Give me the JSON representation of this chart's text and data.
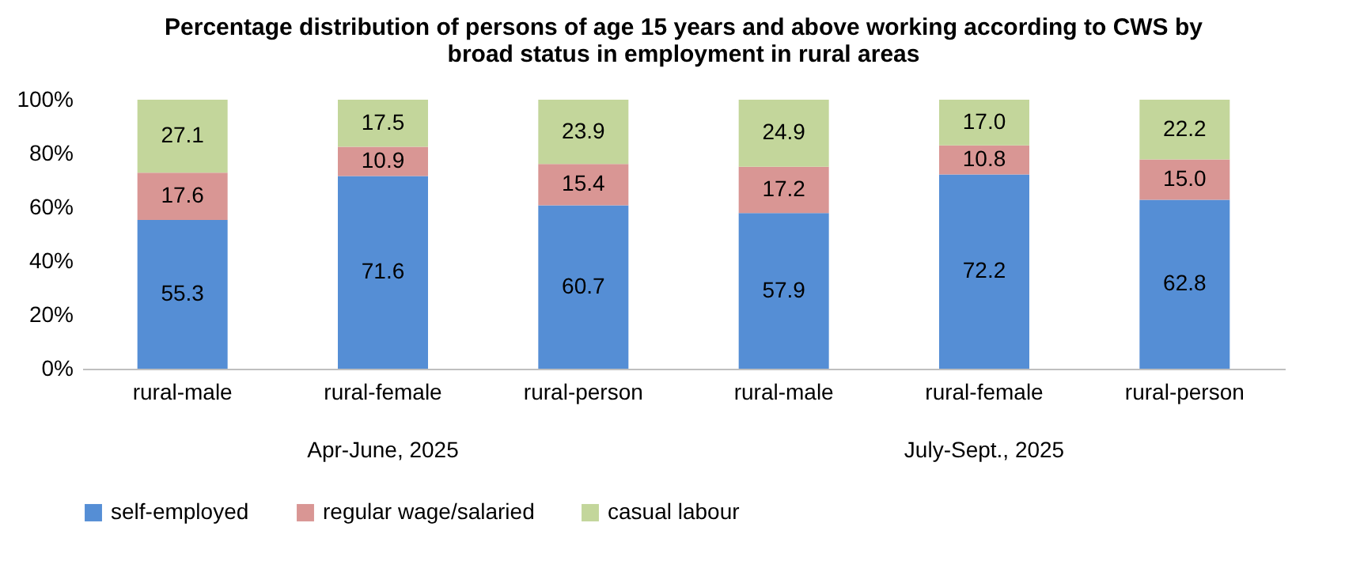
{
  "chart_data": {
    "type": "bar",
    "title": "Percentage distribution of persons of age 15 years and above working according to CWS by broad status in employment in rural areas",
    "categories": [
      "rural-male",
      "rural-female",
      "rural-person",
      "rural-male",
      "rural-female",
      "rural-person"
    ],
    "annotations": [
      "Apr-June, 2025",
      "July-Sept., 2025"
    ],
    "series": [
      {
        "name": "self-employed",
        "color": "#558ed5",
        "values": [
          55.3,
          71.6,
          60.7,
          57.9,
          72.2,
          62.8
        ],
        "value_labels": [
          "55.3",
          "71.6",
          "60.7",
          "57.9",
          "72.2",
          "62.8"
        ]
      },
      {
        "name": "regular wage/salaried",
        "color": "#d99694",
        "values": [
          17.6,
          10.9,
          15.4,
          17.2,
          10.8,
          15.0
        ],
        "value_labels": [
          "17.6",
          "10.9",
          "15.4",
          "17.2",
          "10.8",
          "15.0"
        ]
      },
      {
        "name": "casual labour",
        "color": "#c3d69b",
        "values": [
          27.1,
          17.5,
          23.9,
          24.9,
          17.0,
          22.2
        ],
        "value_labels": [
          "27.1",
          "17.5",
          "23.9",
          "24.9",
          "17.0",
          "22.2"
        ]
      }
    ],
    "stacked": true,
    "legend": "bottom",
    "grid": false,
    "ylim": [
      0,
      100
    ],
    "yticks": [
      {
        "value": 0,
        "label": "0%"
      },
      {
        "value": 20,
        "label": "20%"
      },
      {
        "value": 40,
        "label": "40%"
      },
      {
        "value": 60,
        "label": "60%"
      },
      {
        "value": 80,
        "label": "80%"
      },
      {
        "value": 100,
        "label": "100%"
      }
    ]
  }
}
